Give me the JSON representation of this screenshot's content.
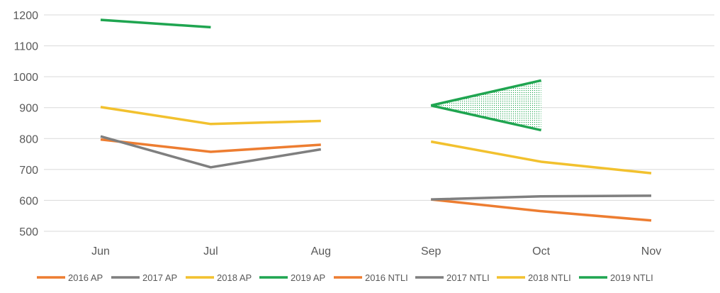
{
  "chart_data": {
    "type": "line",
    "categories": [
      "Jun",
      "Jul",
      "Aug",
      "Sep",
      "Oct",
      "Nov"
    ],
    "ylim": [
      500,
      1200
    ],
    "yticks": [
      500,
      600,
      700,
      800,
      900,
      1000,
      1100,
      1200
    ],
    "grid": true,
    "legend_position": "bottom",
    "series": [
      {
        "name": "2016 AP",
        "color": "#ED7D31",
        "values": [
          797,
          757,
          780,
          null,
          null,
          null
        ]
      },
      {
        "name": "2017 AP",
        "color": "#7F7F7F",
        "values": [
          807,
          707,
          765,
          null,
          null,
          null
        ]
      },
      {
        "name": "2018 AP",
        "color": "#F2C12E",
        "values": [
          902,
          847,
          857,
          null,
          null,
          null
        ]
      },
      {
        "name": "2019 AP",
        "color": "#1FA550",
        "values": [
          1184,
          1160,
          null,
          null,
          null,
          null
        ]
      },
      {
        "name": "2016 NTLI",
        "color": "#ED7D31",
        "values": [
          null,
          null,
          null,
          603,
          565,
          535
        ]
      },
      {
        "name": "2017 NTLI",
        "color": "#7F7F7F",
        "values": [
          null,
          null,
          null,
          603,
          613,
          615
        ]
      },
      {
        "name": "2018 NTLI",
        "color": "#F2C12E",
        "values": [
          null,
          null,
          null,
          790,
          725,
          688
        ]
      },
      {
        "name": "2019 NTLI",
        "color": "#1FA550",
        "values": [
          null,
          null,
          null,
          907,
          988,
          null
        ]
      }
    ],
    "annotations": [
      {
        "shape": "dotted-triangle",
        "color": "#1FA550",
        "points": [
          {
            "x": "Sep",
            "y": 907
          },
          {
            "x": "Oct",
            "y": 988
          },
          {
            "x": "Oct",
            "y": 827
          }
        ]
      }
    ]
  }
}
